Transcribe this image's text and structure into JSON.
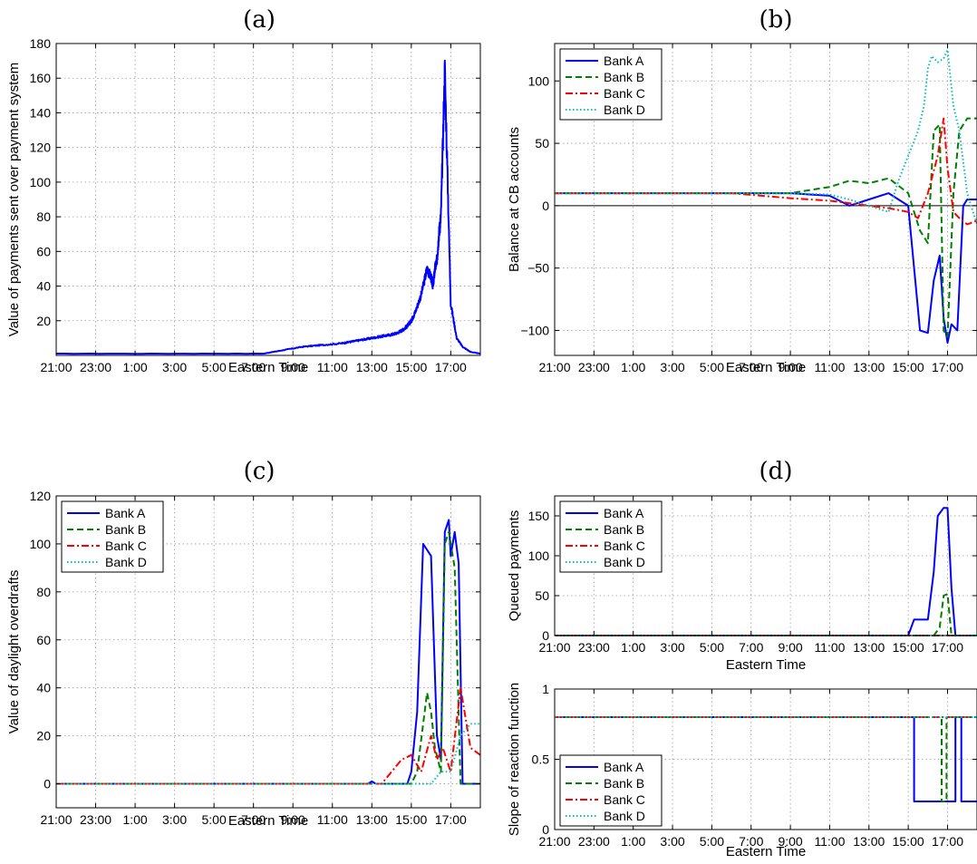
{
  "figure": {
    "time_ticks": [
      "21:00",
      "23:00",
      "1:00",
      "3:00",
      "5:00",
      "7:00",
      "9:00",
      "11:00",
      "13:00",
      "15:00",
      "17:00"
    ]
  },
  "chart_data": [
    {
      "id": "a",
      "panel_label": "(a)",
      "type": "line",
      "xlabel": "Eastern Time",
      "ylabel": "Value of payments sent over payment system",
      "xlim": [
        0,
        21.5
      ],
      "ylim": [
        0,
        180
      ],
      "yticks": [
        20,
        40,
        60,
        80,
        100,
        120,
        140,
        160,
        180
      ],
      "grid": true,
      "legend": null,
      "series": [
        {
          "color": "#0000ff",
          "dash": "solid",
          "noise": 0.06,
          "x": [
            0,
            10.5,
            11.5,
            12.5,
            13.5,
            14.5,
            15.0,
            15.5,
            16.0,
            16.5,
            17.0,
            17.3,
            17.6,
            17.8,
            18.0,
            18.2,
            18.5,
            18.8,
            19.0,
            19.1,
            19.2,
            19.3,
            19.4,
            19.5,
            19.7,
            20.0,
            20.3,
            20.6,
            21.0,
            21.5
          ],
          "y": [
            1,
            1,
            3,
            5,
            6,
            7,
            8,
            9,
            10,
            11,
            12,
            13,
            15,
            17,
            20,
            25,
            35,
            50,
            45,
            40,
            50,
            55,
            70,
            80,
            165,
            30,
            10,
            5,
            2,
            1
          ]
        }
      ]
    },
    {
      "id": "b",
      "panel_label": "(b)",
      "type": "line",
      "xlabel": "Eastern Time",
      "ylabel": "Balance at CB accounts",
      "xlim": [
        0,
        21.5
      ],
      "ylim": [
        -120,
        130
      ],
      "yticks": [
        -100,
        -50,
        0,
        50,
        100
      ],
      "zero_line": true,
      "grid": true,
      "legend": {
        "position": "top-left"
      },
      "series": [
        {
          "name": "Bank A",
          "color": "#0000ff",
          "dash": "solid",
          "x": [
            0,
            8,
            12,
            14,
            15,
            16,
            17,
            18,
            18.6,
            19.0,
            19.3,
            19.6,
            19.8,
            20.0,
            20.2,
            20.5,
            20.8,
            21.0,
            21.5
          ],
          "y": [
            10,
            10,
            10,
            8,
            0,
            5,
            10,
            0,
            -100,
            -102,
            -60,
            -40,
            -90,
            -110,
            -95,
            -100,
            0,
            5,
            5
          ]
        },
        {
          "name": "Bank B",
          "color": "#008000",
          "dash": "dashed",
          "x": [
            0,
            10,
            12,
            14,
            15,
            16,
            17,
            18,
            18.6,
            19.0,
            19.3,
            19.6,
            19.8,
            20.0,
            20.3,
            20.6,
            21.0,
            21.5
          ],
          "y": [
            10,
            10,
            10,
            15,
            20,
            18,
            22,
            10,
            -20,
            -30,
            60,
            65,
            -100,
            -105,
            10,
            60,
            70,
            70
          ]
        },
        {
          "name": "Bank C",
          "color": "#ff0000",
          "dash": "dashdot",
          "x": [
            0,
            9,
            12,
            14,
            15,
            16,
            17,
            18,
            18.5,
            19.0,
            19.5,
            19.8,
            20.0,
            20.3,
            20.6,
            21.0,
            21.5
          ],
          "y": [
            10,
            10,
            6,
            4,
            2,
            0,
            -2,
            -5,
            -10,
            10,
            40,
            70,
            30,
            -5,
            -10,
            -15,
            -12
          ]
        },
        {
          "name": "Bank D",
          "color": "#00bfbf",
          "dash": "dotted",
          "x": [
            0,
            8,
            12,
            14,
            15,
            16,
            17,
            17.5,
            18.0,
            18.5,
            18.8,
            19.0,
            19.2,
            19.5,
            19.8,
            20.0,
            20.3,
            20.6,
            21.0,
            21.5
          ],
          "y": [
            10,
            10,
            10,
            9,
            5,
            0,
            -5,
            20,
            40,
            60,
            80,
            110,
            120,
            115,
            118,
            125,
            80,
            60,
            10,
            -15
          ]
        }
      ]
    },
    {
      "id": "c",
      "panel_label": "(c)",
      "type": "line",
      "xlabel": "Eastern Time",
      "ylabel": "Value of daylight overdrafts",
      "xlim": [
        0,
        21.5
      ],
      "ylim": [
        -10,
        120
      ],
      "yticks": [
        0,
        20,
        40,
        60,
        80,
        100,
        120
      ],
      "grid": true,
      "legend": {
        "position": "top-left"
      },
      "series": [
        {
          "name": "Bank A",
          "color": "#0000ff",
          "dash": "solid",
          "x": [
            0,
            15.8,
            16.0,
            16.2,
            17.0,
            17.8,
            18.0,
            18.3,
            18.6,
            19.0,
            19.3,
            19.5,
            19.7,
            19.9,
            20.0,
            20.2,
            20.4,
            20.6,
            21.5
          ],
          "y": [
            0,
            0,
            1,
            0,
            0,
            0,
            5,
            30,
            100,
            95,
            20,
            10,
            105,
            110,
            95,
            105,
            92,
            0,
            0
          ]
        },
        {
          "name": "Bank B",
          "color": "#008000",
          "dash": "dashed",
          "x": [
            0,
            18.0,
            18.3,
            18.8,
            19.0,
            19.2,
            19.5,
            19.7,
            19.9,
            20.2,
            20.5,
            21.5
          ],
          "y": [
            0,
            0,
            5,
            38,
            30,
            15,
            5,
            100,
            105,
            90,
            0,
            0
          ]
        },
        {
          "name": "Bank C",
          "color": "#ff0000",
          "dash": "dashdot",
          "x": [
            0,
            16.5,
            17.0,
            17.5,
            18.0,
            18.5,
            19.0,
            19.3,
            19.6,
            20.0,
            20.5,
            21.0,
            21.5
          ],
          "y": [
            0,
            0,
            5,
            10,
            12,
            5,
            20,
            10,
            15,
            5,
            40,
            15,
            12
          ]
        },
        {
          "name": "Bank D",
          "color": "#00bfbf",
          "dash": "dotted",
          "x": [
            0,
            17.5,
            18.5,
            19.0,
            19.5,
            20.0,
            20.5,
            21.0,
            21.5
          ],
          "y": [
            0,
            0,
            0,
            0,
            5,
            5,
            20,
            25,
            25
          ]
        }
      ]
    },
    {
      "id": "d-top",
      "panel_label": "(d)",
      "type": "line",
      "xlabel": "Eastern Time",
      "ylabel": "Queued payments",
      "xlim": [
        0,
        21.5
      ],
      "ylim": [
        0,
        175
      ],
      "yticks": [
        0,
        50,
        100,
        150
      ],
      "grid": true,
      "legend": {
        "position": "top-left"
      },
      "series": [
        {
          "name": "Bank A",
          "color": "#0000ff",
          "dash": "solid",
          "x": [
            0,
            18.0,
            18.3,
            19.0,
            19.3,
            19.5,
            19.8,
            20.0,
            20.2,
            20.4,
            21.5
          ],
          "y": [
            0,
            0,
            20,
            20,
            80,
            150,
            160,
            160,
            60,
            0,
            0
          ]
        },
        {
          "name": "Bank B",
          "color": "#008000",
          "dash": "dashed",
          "x": [
            0,
            19.3,
            19.6,
            19.8,
            20.0,
            20.2,
            21.5
          ],
          "y": [
            0,
            0,
            10,
            50,
            52,
            0,
            0
          ]
        },
        {
          "name": "Bank C",
          "color": "#ff0000",
          "dash": "dashdot",
          "x": [
            0,
            21.5
          ],
          "y": [
            0,
            0
          ]
        },
        {
          "name": "Bank D",
          "color": "#00bfbf",
          "dash": "dotted",
          "x": [
            0,
            21.5
          ],
          "y": [
            0,
            0
          ]
        }
      ]
    },
    {
      "id": "d-bottom",
      "panel_label": "",
      "type": "line",
      "xlabel": "Eastern Time",
      "ylabel": "Slope of reaction function",
      "xlim": [
        0,
        21.5
      ],
      "ylim": [
        0,
        1
      ],
      "yticks": [
        0,
        0.5,
        1
      ],
      "grid": true,
      "legend": {
        "position": "bottom-left"
      },
      "series": [
        {
          "name": "Bank A",
          "color": "#0000ff",
          "dash": "solid",
          "x": [
            0,
            18.3,
            18.3,
            20.4,
            20.4,
            20.7,
            20.7,
            21.5
          ],
          "y": [
            0.8,
            0.8,
            0.2,
            0.2,
            0.8,
            0.8,
            0.2,
            0.2
          ]
        },
        {
          "name": "Bank B",
          "color": "#008000",
          "dash": "dashed",
          "x": [
            0,
            19.7,
            19.7,
            19.95,
            19.95,
            21.5
          ],
          "y": [
            0.8,
            0.8,
            0.2,
            0.2,
            0.8,
            0.8
          ]
        },
        {
          "name": "Bank C",
          "color": "#ff0000",
          "dash": "dashdot",
          "x": [
            0,
            21.5
          ],
          "y": [
            0.8,
            0.8
          ]
        },
        {
          "name": "Bank D",
          "color": "#00bfbf",
          "dash": "dotted",
          "x": [
            0,
            21.5
          ],
          "y": [
            0.8,
            0.8
          ]
        }
      ]
    }
  ]
}
